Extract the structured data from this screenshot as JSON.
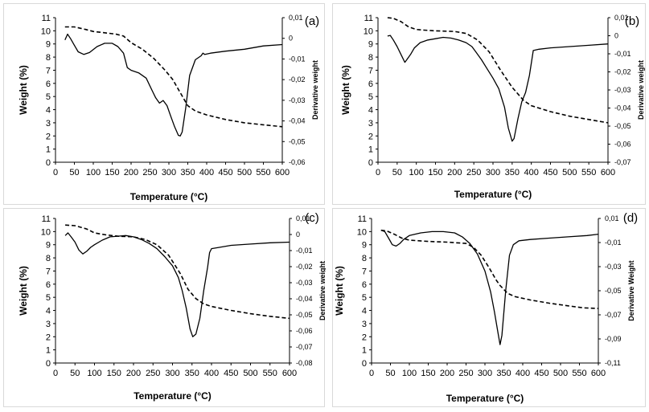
{
  "chart_data": [
    {
      "type": "line",
      "panel_label": "(a)",
      "xlabel": "Temperature (°C)",
      "ylabel": "Weight (%)",
      "y2label": "Derivative weight",
      "xlim": [
        0,
        600
      ],
      "ylim": [
        0,
        11
      ],
      "y2lim": [
        -0.06,
        0.01
      ],
      "xticks": [
        "0",
        "50",
        "100",
        "150",
        "200",
        "250",
        "300",
        "350",
        "400",
        "450",
        "500",
        "550",
        "600"
      ],
      "yticks": [
        "0",
        "1",
        "2",
        "3",
        "4",
        "5",
        "6",
        "7",
        "8",
        "9",
        "10",
        "11"
      ],
      "y2ticks": [
        "0,01",
        "0",
        "-0,01",
        "-0,02",
        "-0,03",
        "-0,04",
        "-0,05",
        "-0,06"
      ],
      "y2tickvals": [
        0.01,
        0,
        -0.01,
        -0.02,
        -0.03,
        -0.04,
        -0.05,
        -0.06
      ],
      "series": [
        {
          "style": "dashed",
          "axis": "left",
          "x": [
            25,
            50,
            80,
            100,
            130,
            160,
            180,
            200,
            230,
            260,
            290,
            310,
            330,
            350,
            370,
            400,
            450,
            500,
            550,
            600
          ],
          "values": [
            10.3,
            10.3,
            10.1,
            9.95,
            9.85,
            9.75,
            9.6,
            9.1,
            8.6,
            7.9,
            7.0,
            6.3,
            5.3,
            4.3,
            3.9,
            3.6,
            3.25,
            3.0,
            2.85,
            2.7
          ]
        },
        {
          "style": "solid",
          "axis": "left",
          "x": [
            25,
            32,
            40,
            50,
            60,
            75,
            90,
            110,
            130,
            150,
            165,
            180,
            190,
            200,
            220,
            240,
            255,
            265,
            275,
            285,
            295,
            305,
            315,
            325,
            330,
            335,
            345,
            355,
            370,
            385,
            390,
            395,
            410,
            450,
            500,
            550,
            600
          ],
          "values": [
            9.3,
            9.75,
            9.4,
            8.9,
            8.4,
            8.2,
            8.35,
            8.8,
            9.05,
            9.05,
            8.8,
            8.3,
            7.2,
            7.0,
            6.8,
            6.4,
            5.5,
            4.9,
            4.5,
            4.7,
            4.3,
            3.5,
            2.7,
            2.05,
            2.0,
            2.3,
            4.2,
            6.6,
            7.8,
            8.1,
            8.3,
            8.2,
            8.3,
            8.45,
            8.6,
            8.85,
            8.95
          ]
        }
      ]
    },
    {
      "type": "line",
      "panel_label": "(b)",
      "xlabel": "Temperature (°C)",
      "ylabel": "Weight (%)",
      "y2label": "Derivative weight",
      "xlim": [
        0,
        600
      ],
      "ylim": [
        0,
        11
      ],
      "y2lim": [
        -0.07,
        0.01
      ],
      "xticks": [
        "0",
        "50",
        "100",
        "150",
        "200",
        "250",
        "300",
        "350",
        "400",
        "450",
        "500",
        "550",
        "600"
      ],
      "yticks": [
        "0",
        "1",
        "2",
        "3",
        "4",
        "5",
        "6",
        "7",
        "8",
        "9",
        "10",
        "11"
      ],
      "y2ticks": [
        "0,01",
        "0",
        "-0,01",
        "-0,02",
        "-0,03",
        "-0,04",
        "-0,05",
        "-0,06",
        "-0,07"
      ],
      "y2tickvals": [
        0.01,
        0,
        -0.01,
        -0.02,
        -0.03,
        -0.04,
        -0.05,
        -0.06,
        -0.07
      ],
      "series": [
        {
          "style": "dashed",
          "axis": "left",
          "x": [
            25,
            40,
            60,
            80,
            100,
            120,
            150,
            200,
            230,
            260,
            290,
            320,
            350,
            380,
            400,
            450,
            500,
            550,
            600
          ],
          "values": [
            11.0,
            10.95,
            10.7,
            10.3,
            10.1,
            10.05,
            10.0,
            9.95,
            9.8,
            9.3,
            8.4,
            7.0,
            5.7,
            4.7,
            4.3,
            3.85,
            3.5,
            3.25,
            3.0
          ]
        },
        {
          "style": "solid",
          "axis": "left",
          "x": [
            25,
            32,
            40,
            50,
            60,
            70,
            75,
            85,
            95,
            110,
            130,
            150,
            170,
            190,
            210,
            230,
            245,
            255,
            270,
            285,
            300,
            315,
            330,
            340,
            350,
            355,
            365,
            375,
            385,
            395,
            405,
            420,
            450,
            500,
            550,
            600
          ],
          "values": [
            9.6,
            9.65,
            9.3,
            8.8,
            8.2,
            7.6,
            7.8,
            8.2,
            8.7,
            9.1,
            9.3,
            9.4,
            9.5,
            9.45,
            9.3,
            9.1,
            8.8,
            8.4,
            7.8,
            7.1,
            6.4,
            5.6,
            4.2,
            2.6,
            1.6,
            1.8,
            3.3,
            4.6,
            5.3,
            6.6,
            8.5,
            8.6,
            8.7,
            8.8,
            8.9,
            9.0
          ]
        }
      ]
    },
    {
      "type": "line",
      "panel_label": "(c)",
      "xlabel": "Temperature (°C)",
      "ylabel": "Weight (%)",
      "y2label": "Derivative weight",
      "xlim": [
        0,
        600
      ],
      "ylim": [
        0,
        11
      ],
      "y2lim": [
        -0.08,
        0.01
      ],
      "xticks": [
        "0",
        "50",
        "100",
        "150",
        "200",
        "250",
        "300",
        "350",
        "400",
        "450",
        "500",
        "550",
        "600"
      ],
      "yticks": [
        "0",
        "1",
        "2",
        "3",
        "4",
        "5",
        "6",
        "7",
        "8",
        "9",
        "10",
        "11"
      ],
      "y2ticks": [
        "0,01",
        "0",
        "-0,01",
        "-0,02",
        "-0,03",
        "-0,04",
        "-0,05",
        "-0,06",
        "-0,07",
        "-0,08"
      ],
      "y2tickvals": [
        0.01,
        0,
        -0.01,
        -0.02,
        -0.03,
        -0.04,
        -0.05,
        -0.06,
        -0.07,
        -0.08
      ],
      "series": [
        {
          "style": "dashed",
          "axis": "left",
          "x": [
            25,
            50,
            80,
            100,
            130,
            160,
            200,
            230,
            260,
            290,
            320,
            340,
            360,
            380,
            400,
            450,
            500,
            550,
            600
          ],
          "values": [
            10.5,
            10.45,
            10.2,
            9.9,
            9.75,
            9.65,
            9.6,
            9.4,
            9.0,
            8.2,
            6.8,
            5.6,
            4.9,
            4.5,
            4.3,
            4.0,
            3.75,
            3.55,
            3.4
          ]
        },
        {
          "style": "solid",
          "axis": "left",
          "x": [
            25,
            32,
            40,
            50,
            60,
            70,
            80,
            90,
            100,
            120,
            140,
            160,
            180,
            200,
            220,
            240,
            260,
            280,
            300,
            315,
            325,
            335,
            345,
            352,
            360,
            370,
            380,
            390,
            395,
            400,
            420,
            450,
            500,
            550,
            600
          ],
          "values": [
            9.7,
            9.9,
            9.6,
            9.2,
            8.6,
            8.3,
            8.5,
            8.8,
            9.0,
            9.35,
            9.6,
            9.65,
            9.7,
            9.6,
            9.4,
            9.1,
            8.7,
            8.1,
            7.4,
            6.5,
            5.5,
            4.2,
            2.6,
            2.0,
            2.2,
            3.4,
            5.5,
            7.3,
            8.4,
            8.7,
            8.8,
            8.95,
            9.05,
            9.15,
            9.2
          ]
        }
      ]
    },
    {
      "type": "line",
      "panel_label": "(d)",
      "xlabel": "Temperature (°C)",
      "ylabel": "Weight  (%)",
      "y2label": "Derivative Weight",
      "xlim": [
        0,
        600
      ],
      "ylim": [
        0,
        11
      ],
      "y2lim": [
        -0.11,
        0.01
      ],
      "xticks": [
        "0",
        "50",
        "100",
        "150",
        "200",
        "250",
        "300",
        "350",
        "400",
        "450",
        "500",
        "550",
        "600"
      ],
      "yticks": [
        "0",
        "1",
        "2",
        "3",
        "4",
        "5",
        "6",
        "7",
        "8",
        "9",
        "10",
        "11"
      ],
      "y2ticks": [
        "0,01",
        "-0,01",
        "-0,03",
        "-0,05",
        "-0,07",
        "-0,09",
        "-0,11"
      ],
      "y2tickvals": [
        0.01,
        -0.01,
        -0.03,
        -0.05,
        -0.07,
        -0.09,
        -0.11
      ],
      "series": [
        {
          "style": "dashed",
          "axis": "left",
          "x": [
            25,
            40,
            60,
            80,
            100,
            150,
            200,
            250,
            270,
            290,
            310,
            320,
            330,
            340,
            350,
            360,
            380,
            420,
            470,
            520,
            560,
            600
          ],
          "values": [
            10.1,
            10.05,
            9.8,
            9.5,
            9.35,
            9.25,
            9.2,
            9.1,
            8.8,
            8.2,
            7.3,
            6.8,
            6.3,
            5.9,
            5.6,
            5.3,
            5.05,
            4.8,
            4.55,
            4.35,
            4.2,
            4.15
          ]
        },
        {
          "style": "solid",
          "axis": "left",
          "x": [
            25,
            35,
            45,
            55,
            65,
            75,
            85,
            100,
            130,
            160,
            190,
            220,
            240,
            260,
            280,
            300,
            315,
            325,
            335,
            340,
            345,
            355,
            365,
            375,
            390,
            420,
            470,
            520,
            570,
            600
          ],
          "values": [
            10.1,
            10.0,
            9.5,
            9.0,
            8.9,
            9.1,
            9.4,
            9.7,
            9.9,
            10.0,
            10.0,
            9.9,
            9.6,
            9.1,
            8.3,
            7.0,
            5.4,
            3.9,
            2.2,
            1.4,
            2.1,
            5.5,
            8.2,
            9.0,
            9.3,
            9.4,
            9.5,
            9.6,
            9.7,
            9.8
          ]
        }
      ]
    }
  ]
}
